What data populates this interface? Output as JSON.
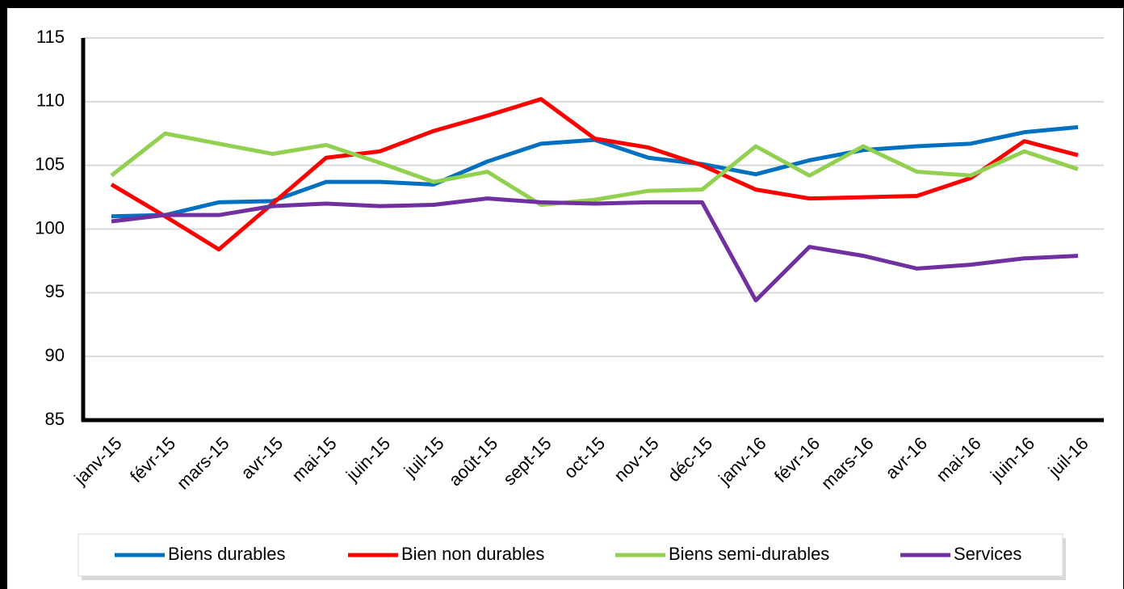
{
  "chart_data": {
    "type": "line",
    "categories": [
      "janv-15",
      "févr-15",
      "mars-15",
      "avr-15",
      "mai-15",
      "juin-15",
      "juil-15",
      "août-15",
      "sept-15",
      "oct-15",
      "nov-15",
      "déc-15",
      "janv-16",
      "févr-16",
      "mars-16",
      "avr-16",
      "mai-16",
      "juin-16",
      "juil-16"
    ],
    "series": [
      {
        "name": "Biens durables",
        "color": "#0070c0",
        "values": [
          101.0,
          101.1,
          102.1,
          102.2,
          103.7,
          103.7,
          103.5,
          105.3,
          106.7,
          107.0,
          105.6,
          105.1,
          104.3,
          105.4,
          106.2,
          106.5,
          106.7,
          107.6,
          108.0
        ]
      },
      {
        "name": "Bien non durables",
        "color": "#ff0000",
        "values": [
          103.5,
          101.0,
          98.4,
          102.0,
          105.6,
          106.1,
          107.7,
          108.9,
          110.2,
          107.1,
          106.4,
          105.0,
          103.1,
          102.4,
          102.5,
          102.6,
          104.0,
          106.9,
          105.8
        ]
      },
      {
        "name": "Biens semi-durables",
        "color": "#92d050",
        "values": [
          104.2,
          107.5,
          106.7,
          105.9,
          106.6,
          105.2,
          103.7,
          104.5,
          101.9,
          102.3,
          103.0,
          103.1,
          106.5,
          104.2,
          106.5,
          104.5,
          104.2,
          106.1,
          104.7
        ]
      },
      {
        "name": "Services",
        "color": "#7030a0",
        "values": [
          100.6,
          101.1,
          101.1,
          101.8,
          102.0,
          101.8,
          101.9,
          102.4,
          102.1,
          102.0,
          102.1,
          102.1,
          94.4,
          98.6,
          97.9,
          96.9,
          97.2,
          97.7,
          97.9
        ]
      }
    ],
    "ylim": [
      85,
      115
    ],
    "yticks": [
      85,
      90,
      95,
      100,
      105,
      110,
      115
    ],
    "grid": true,
    "legend": "bottom"
  }
}
